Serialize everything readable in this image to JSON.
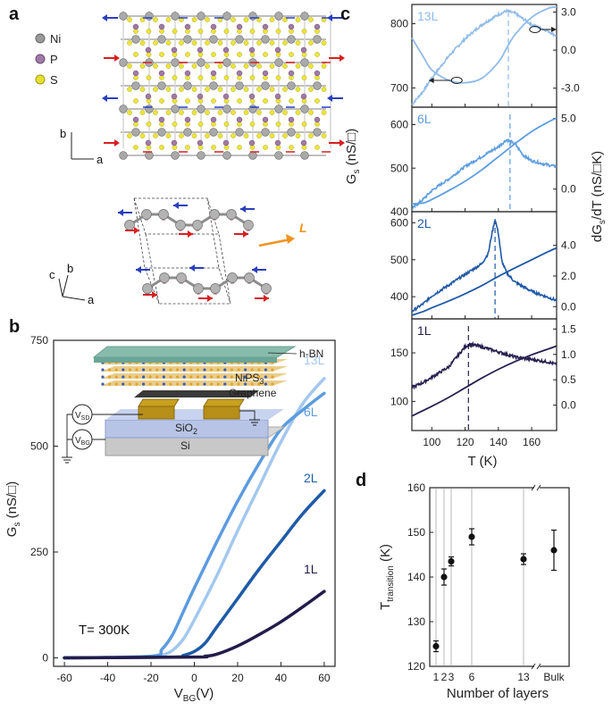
{
  "panels": {
    "a": "a",
    "b": "b",
    "c": "c",
    "d": "d"
  },
  "panel_a": {
    "legend": [
      {
        "label": "Ni",
        "color": "#9a9a9a"
      },
      {
        "label": "P",
        "color": "#a07aa6"
      },
      {
        "label": "S",
        "color": "#e8e030"
      }
    ],
    "axes_top": {
      "b": "b",
      "a": "a"
    },
    "axes_bottom": {
      "c": "c",
      "b": "b",
      "a": "a"
    },
    "laser_label": "L"
  },
  "panel_b_inset": {
    "hbn": "h-BN",
    "nips3": "NiPS",
    "nips3_sub": "3",
    "graphene": "Graphene",
    "sio2": "SiO",
    "sio2_sub": "2",
    "si": "Si",
    "vsd": "V",
    "vsd_sub": "SD",
    "vbg": "V",
    "vbg_sub": "BG"
  },
  "chart_data": [
    {
      "id": "b",
      "type": "line",
      "xlabel": "V",
      "xlabel_sub": "BG",
      "xlabel_unit": "(V)",
      "ylabel": "G",
      "ylabel_sub": "s",
      "ylabel_unit": "(nS/□)",
      "xlim": [
        -65,
        65
      ],
      "ylim": [
        -20,
        750
      ],
      "xticks": [
        -60,
        -40,
        -20,
        0,
        20,
        40,
        60
      ],
      "yticks": [
        0,
        250,
        500,
        750
      ],
      "annotation": "T= 300K",
      "series": [
        {
          "name": "13L",
          "color": "#a4c8ee",
          "x": [
            -60,
            -20,
            -15,
            -10,
            -5,
            0,
            10,
            20,
            30,
            40,
            50,
            60
          ],
          "y": [
            0,
            2,
            6,
            18,
            45,
            90,
            190,
            300,
            405,
            510,
            600,
            660
          ]
        },
        {
          "name": "6L",
          "color": "#5b9be0",
          "x": [
            -60,
            -20,
            -15,
            -10,
            -5,
            0,
            10,
            20,
            30,
            40,
            50,
            60
          ],
          "y": [
            0,
            4,
            20,
            55,
            110,
            165,
            270,
            370,
            460,
            540,
            585,
            625
          ]
        },
        {
          "name": "2L",
          "color": "#1e5aa8",
          "x": [
            -60,
            -10,
            -5,
            0,
            5,
            10,
            20,
            30,
            40,
            50,
            60
          ],
          "y": [
            0,
            2,
            6,
            15,
            35,
            70,
            140,
            210,
            275,
            340,
            395
          ]
        },
        {
          "name": "1L",
          "color": "#221c4a",
          "x": [
            -60,
            0,
            5,
            10,
            20,
            30,
            40,
            50,
            60
          ],
          "y": [
            0,
            2,
            4,
            8,
            28,
            55,
            85,
            120,
            157
          ]
        }
      ]
    },
    {
      "id": "c",
      "type": "line",
      "xlabel": "T (K)",
      "ylabel_left": "G",
      "ylabel_left_sub": "s",
      "ylabel_left_unit": "(nS/□)",
      "ylabel_right": "dG",
      "ylabel_right_sub": "s",
      "ylabel_right_unit": "/dT (nS/□K)",
      "xlim": [
        88,
        175
      ],
      "xticks": [
        100,
        120,
        140,
        160
      ],
      "subplots": [
        {
          "label": "13L",
          "color": "#8fbbea",
          "ylim_left": [
            670,
            830
          ],
          "yticks_left": [
            700,
            800
          ],
          "ylim_right": [
            -4.5,
            3.6
          ],
          "yticks_right": [
            3.0,
            0.0,
            -3.0
          ],
          "transition_T": 146,
          "G": {
            "x": [
              88,
              95,
              100,
              110,
              120,
              130,
              140,
              145,
              150,
              160,
              170,
              175
            ],
            "y": [
              778,
              748,
              728,
              712,
              708,
              715,
              740,
              762,
              783,
              810,
              824,
              826
            ]
          },
          "dGdT": {
            "x": [
              88,
              95,
              100,
              110,
              120,
              130,
              140,
              145,
              150,
              160,
              170,
              175
            ],
            "y": [
              -4.3,
              -3.2,
              -2.2,
              -0.5,
              0.9,
              2.0,
              2.8,
              3.1,
              2.9,
              2.0,
              1.5,
              1.1
            ]
          }
        },
        {
          "label": "6L",
          "color": "#5d9de0",
          "ylim_left": [
            400,
            640
          ],
          "yticks_left": [
            400,
            500,
            600
          ],
          "ylim_right": [
            -1.6,
            5.8
          ],
          "yticks_right": [
            5.0,
            0.0
          ],
          "transition_T": 147,
          "G": {
            "x": [
              88,
              95,
              100,
              110,
              120,
              130,
              140,
              150,
              160,
              170,
              175
            ],
            "y": [
              418,
              420,
              428,
              448,
              470,
              496,
              526,
              556,
              584,
              606,
              615
            ]
          },
          "dGdT": {
            "x": [
              88,
              95,
              100,
              110,
              120,
              130,
              140,
              145,
              150,
              155,
              160,
              170,
              175
            ],
            "y": [
              -1.4,
              -0.7,
              -0.1,
              0.7,
              1.6,
              2.3,
              3.0,
              3.5,
              3.2,
              2.4,
              2.0,
              1.7,
              1.6
            ]
          }
        },
        {
          "label": "2L",
          "color": "#1f58a6",
          "ylim_left": [
            340,
            630
          ],
          "yticks_left": [
            400,
            500,
            600
          ],
          "ylim_right": [
            -0.8,
            6.2
          ],
          "yticks_right": [
            4.0,
            2.0,
            0.0
          ],
          "transition_T": 138,
          "G": {
            "x": [
              88,
              95,
              100,
              110,
              120,
              130,
              140,
              150,
              160,
              170,
              175
            ],
            "y": [
              350,
              360,
              370,
              388,
              408,
              430,
              455,
              478,
              500,
              522,
              532
            ]
          },
          "dGdT": {
            "x": [
              88,
              95,
              100,
              110,
              120,
              130,
              134,
              136,
              138,
              140,
              142,
              145,
              150,
              160,
              170,
              175
            ],
            "y": [
              -0.3,
              0.2,
              0.7,
              1.4,
              2.1,
              2.8,
              3.5,
              4.7,
              5.7,
              4.8,
              3.0,
              2.2,
              1.6,
              1.0,
              0.6,
              0.4
            ]
          }
        },
        {
          "label": "1L",
          "color": "#272050",
          "ylim_left": [
            70,
            185
          ],
          "yticks_left": [
            100,
            150
          ],
          "ylim_right": [
            -0.5,
            1.7
          ],
          "yticks_right": [
            1.5,
            1.0,
            0.5,
            0.0
          ],
          "transition_T": 122,
          "G": {
            "x": [
              88,
              100,
              110,
              120,
              130,
              140,
              150,
              160,
              170,
              175
            ],
            "y": [
              85,
              95,
              104,
              114,
              124,
              133,
              141,
              148,
              154,
              157
            ]
          },
          "dGdT": {
            "x": [
              88,
              95,
              100,
              110,
              115,
              120,
              123,
              130,
              140,
              150,
              160,
              170,
              175
            ],
            "y": [
              0.35,
              0.45,
              0.55,
              0.75,
              0.95,
              1.15,
              1.2,
              1.15,
              1.05,
              0.95,
              0.9,
              0.85,
              0.8
            ]
          }
        }
      ]
    },
    {
      "id": "d",
      "type": "scatter",
      "xlabel": "Number of layers",
      "ylabel": "T",
      "ylabel_sub": "transition",
      "ylabel_unit": "(K)",
      "ylim": [
        120,
        160
      ],
      "yticks": [
        120,
        130,
        140,
        150,
        160
      ],
      "xticklabels": [
        "1",
        "2",
        "3",
        "6",
        "13",
        "Bulk"
      ],
      "points": [
        {
          "label": "1",
          "y": 124.5,
          "err": 1.2
        },
        {
          "label": "2",
          "y": 140.0,
          "err": 1.8
        },
        {
          "label": "3",
          "y": 143.5,
          "err": 1.0
        },
        {
          "label": "6",
          "y": 149.0,
          "err": 1.8
        },
        {
          "label": "13",
          "y": 144.0,
          "err": 1.2
        },
        {
          "label": "Bulk",
          "y": 146.0,
          "err": 4.5
        }
      ]
    }
  ]
}
